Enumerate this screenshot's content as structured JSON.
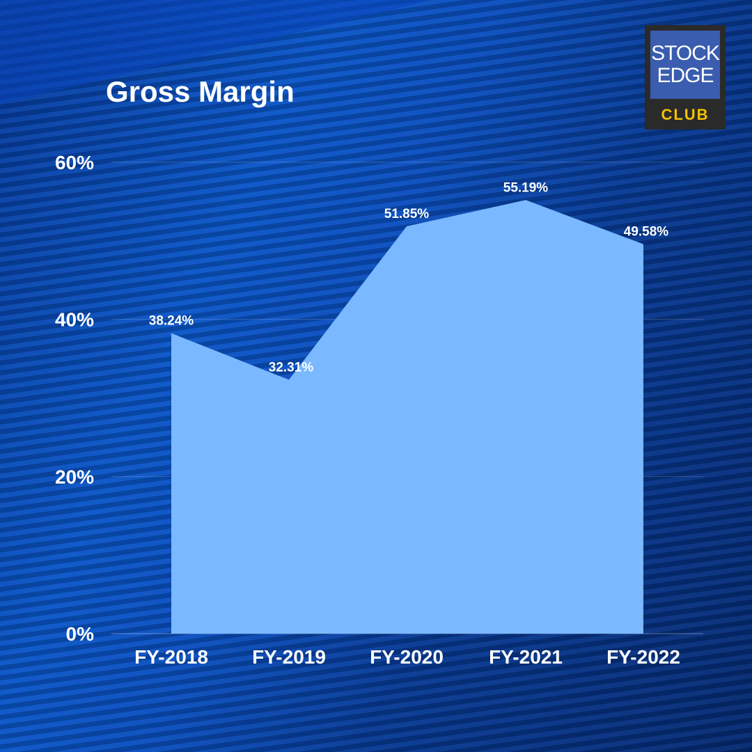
{
  "title": "Gross Margin",
  "logo": {
    "line1": "STOCK",
    "line2": "EDGE",
    "line3": "CLUB"
  },
  "colors": {
    "area": "#7ab8ff",
    "text": "#ffffff",
    "grid": "rgba(255,255,255,0.18)",
    "logo_accent": "#f2c200"
  },
  "chart_data": {
    "type": "area",
    "title": "Gross Margin",
    "categories": [
      "FY-2018",
      "FY-2019",
      "FY-2020",
      "FY-2021",
      "FY-2022"
    ],
    "values": [
      38.24,
      32.31,
      51.85,
      55.19,
      49.58
    ],
    "data_labels": [
      "38.24%",
      "32.31%",
      "51.85%",
      "55.19%",
      "49.58%"
    ],
    "y_ticks": [
      "0%",
      "20%",
      "40%",
      "60%"
    ],
    "y_tick_values": [
      0,
      20,
      40,
      60
    ],
    "ylim": [
      0,
      60
    ],
    "xlabel": "",
    "ylabel": "",
    "grid": true,
    "legend": "none"
  }
}
